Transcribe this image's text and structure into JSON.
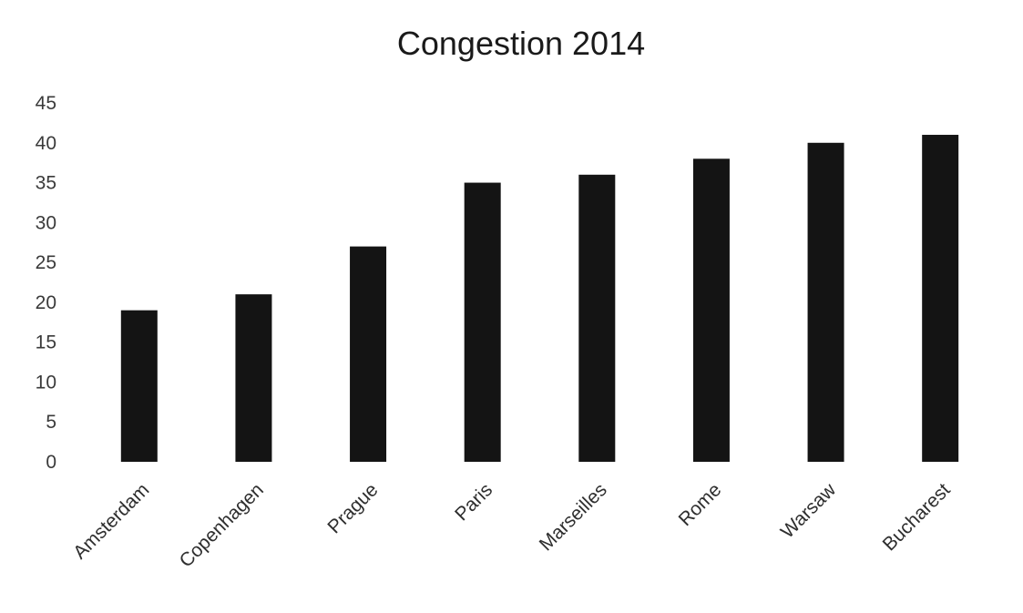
{
  "chart_data": {
    "type": "bar",
    "title": "Congestion 2014",
    "xlabel": "",
    "ylabel": "",
    "categories": [
      "Amsterdam",
      "Copenhagen",
      "Prague",
      "Paris",
      "Marseilles",
      "Rome",
      "Warsaw",
      "Bucharest"
    ],
    "values": [
      19,
      21,
      27,
      35,
      36,
      38,
      40,
      41
    ],
    "ylim": [
      0,
      45
    ],
    "yticks": [
      0,
      5,
      10,
      15,
      20,
      25,
      30,
      35,
      40,
      45
    ],
    "grid": false,
    "legend": "none",
    "bar_color": "#141414"
  }
}
